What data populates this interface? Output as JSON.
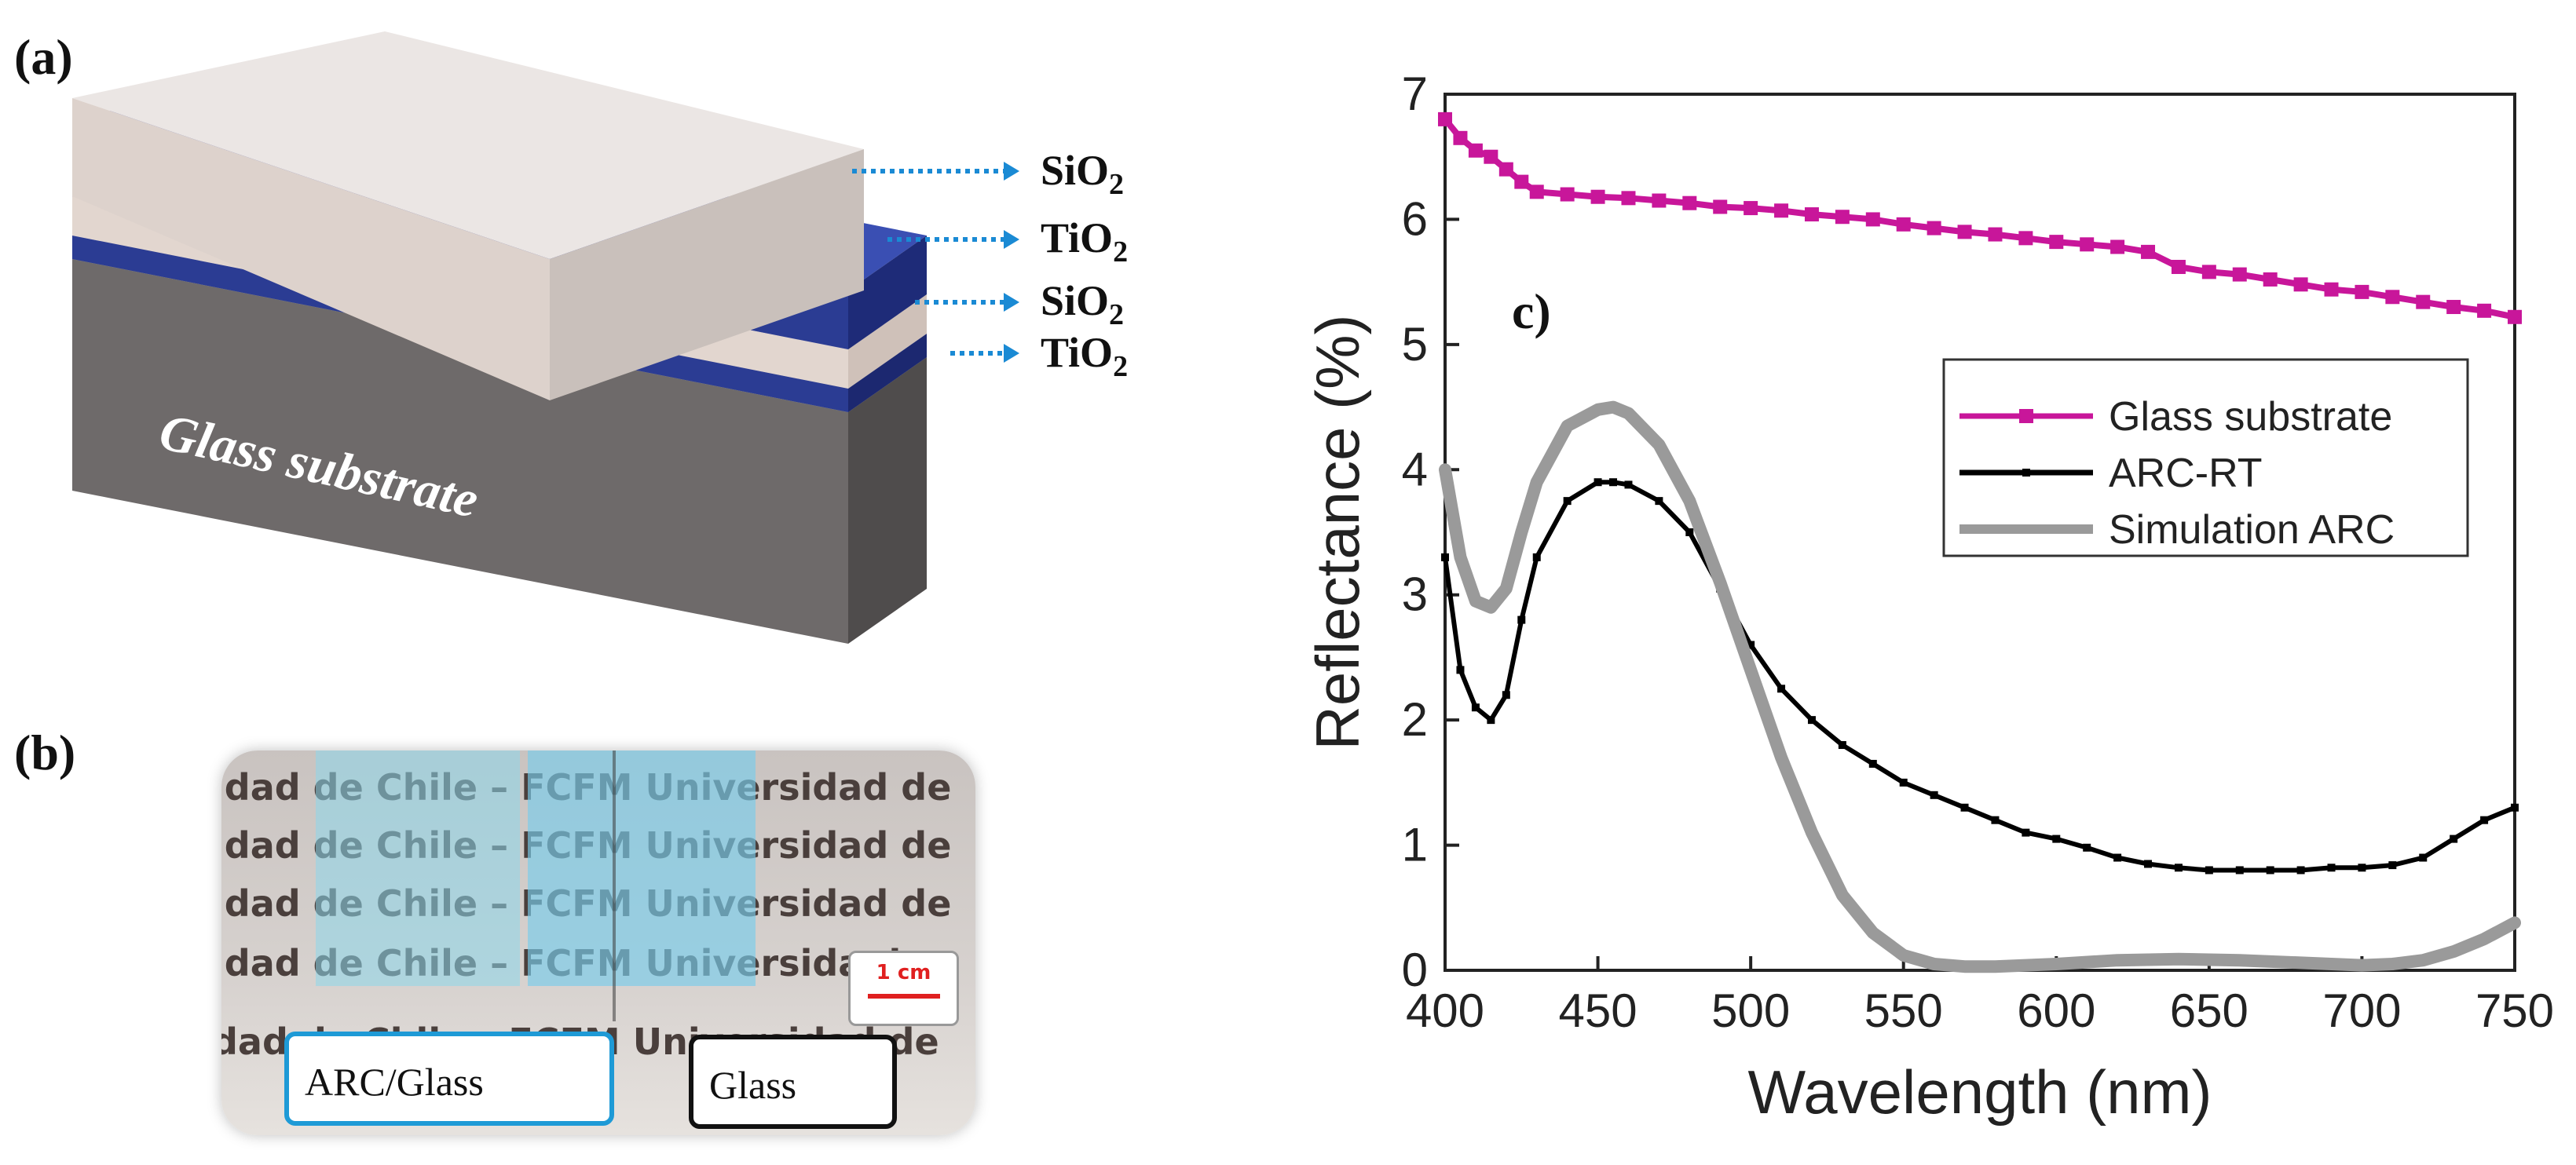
{
  "panel_a": {
    "label": "(a)",
    "substrate_label": "Glass substrate",
    "layers": [
      {
        "name": "SiO",
        "sub": "2"
      },
      {
        "name": "TiO",
        "sub": "2"
      },
      {
        "name": "SiO",
        "sub": "2"
      },
      {
        "name": "TiO",
        "sub": "2"
      }
    ],
    "colors": {
      "sio2": "#e7ddd8",
      "tio2": "#2b3c93",
      "substrate": "#6e6a6a",
      "arrow": "#1a8ad4"
    }
  },
  "panel_b": {
    "label": "(b)",
    "background_text_lines": [
      "idad de Chile – FCFM Universidad de",
      "idad de Chile – FCFM Universidad de",
      "idad de Chile – FCFM Universidad de",
      "idad de Chile – FCFM Universida de",
      "dad de Chile – FCFM Universidad de"
    ],
    "scale_bar": "1 cm",
    "box_arc": "ARC/Glass",
    "box_glass": "Glass",
    "colors": {
      "arc_box": "#1e9ad6",
      "glass_box": "#111111",
      "scale": "#e02020"
    }
  },
  "chart_data": {
    "type": "line",
    "panel_label": "c)",
    "xlabel": "Wavelength (nm)",
    "ylabel": "Reflectance (%)",
    "xlim": [
      400,
      750
    ],
    "ylim": [
      0,
      7
    ],
    "x_ticks": [
      "400",
      "450",
      "500",
      "550",
      "600",
      "650",
      "700",
      "750"
    ],
    "y_ticks": [
      "0",
      "1",
      "2",
      "3",
      "4",
      "5",
      "6",
      "7"
    ],
    "legend_position": "upper-right",
    "series": [
      {
        "name": "Glass substrate",
        "color": "#c8169a",
        "x": [
          400,
          405,
          410,
          415,
          420,
          425,
          430,
          440,
          450,
          460,
          470,
          480,
          490,
          500,
          510,
          520,
          530,
          540,
          550,
          560,
          570,
          580,
          590,
          600,
          610,
          620,
          630,
          640,
          650,
          660,
          670,
          680,
          690,
          700,
          710,
          720,
          730,
          740,
          750
        ],
        "y": [
          6.8,
          6.65,
          6.55,
          6.5,
          6.4,
          6.3,
          6.22,
          6.2,
          6.18,
          6.17,
          6.15,
          6.13,
          6.1,
          6.09,
          6.07,
          6.04,
          6.02,
          6.0,
          5.96,
          5.93,
          5.9,
          5.88,
          5.85,
          5.82,
          5.8,
          5.78,
          5.74,
          5.62,
          5.58,
          5.56,
          5.52,
          5.48,
          5.44,
          5.42,
          5.38,
          5.34,
          5.3,
          5.27,
          5.22
        ]
      },
      {
        "name": "ARC-RT",
        "color": "#000000",
        "x": [
          400,
          405,
          410,
          415,
          420,
          425,
          430,
          440,
          450,
          455,
          460,
          470,
          480,
          490,
          500,
          510,
          520,
          530,
          540,
          550,
          560,
          570,
          580,
          590,
          600,
          610,
          620,
          630,
          640,
          650,
          660,
          670,
          680,
          690,
          700,
          710,
          720,
          730,
          740,
          750
        ],
        "y": [
          3.3,
          2.4,
          2.1,
          2.0,
          2.2,
          2.8,
          3.3,
          3.75,
          3.9,
          3.9,
          3.88,
          3.75,
          3.5,
          3.05,
          2.6,
          2.25,
          2.0,
          1.8,
          1.65,
          1.5,
          1.4,
          1.3,
          1.2,
          1.1,
          1.05,
          0.98,
          0.9,
          0.85,
          0.82,
          0.8,
          0.8,
          0.8,
          0.8,
          0.82,
          0.82,
          0.84,
          0.9,
          1.05,
          1.2,
          1.3
        ]
      },
      {
        "name": "Simulation ARC",
        "color": "#9a9a9a",
        "x": [
          400,
          405,
          410,
          415,
          420,
          425,
          430,
          440,
          450,
          455,
          460,
          470,
          480,
          490,
          500,
          510,
          520,
          530,
          540,
          550,
          560,
          570,
          580,
          600,
          620,
          640,
          660,
          680,
          700,
          710,
          720,
          730,
          740,
          750
        ],
        "y": [
          4.0,
          3.3,
          2.95,
          2.9,
          3.05,
          3.5,
          3.9,
          4.35,
          4.48,
          4.5,
          4.45,
          4.2,
          3.75,
          3.1,
          2.4,
          1.7,
          1.1,
          0.6,
          0.3,
          0.12,
          0.05,
          0.03,
          0.03,
          0.05,
          0.08,
          0.09,
          0.08,
          0.06,
          0.04,
          0.05,
          0.08,
          0.15,
          0.25,
          0.38
        ]
      }
    ]
  }
}
